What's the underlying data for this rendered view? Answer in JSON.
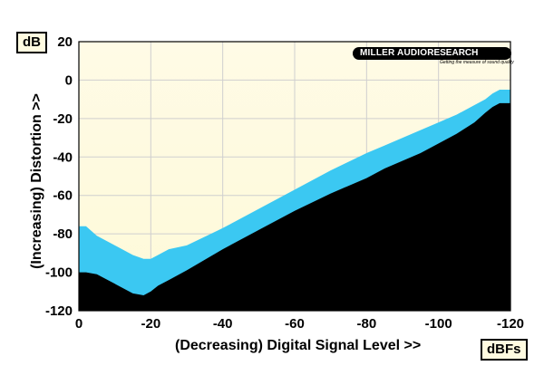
{
  "chart_data": {
    "type": "area",
    "title": "",
    "xlabel": "(Decreasing) Digital Signal Level >>",
    "ylabel": "(Increasing) Distortion >>",
    "x_unit": "dBFs",
    "y_unit": "dB",
    "xlim": [
      0,
      -120
    ],
    "ylim": [
      -120,
      20
    ],
    "x_ticks": [
      "0",
      "-20",
      "-40",
      "-60",
      "-80",
      "-100",
      "-120"
    ],
    "y_ticks": [
      "20",
      "0",
      "-20",
      "-40",
      "-60",
      "-80",
      "-100",
      "-120"
    ],
    "grid": true,
    "series": [
      {
        "x": [
          0,
          -2,
          -5,
          -10,
          -15,
          -18,
          -20,
          -22,
          -25,
          -30,
          -40,
          -50,
          -60,
          -70,
          -80,
          -85,
          -90,
          -95,
          -100,
          -105,
          -110,
          -113,
          -115,
          -117,
          -120
        ],
        "values": [
          -76,
          -76,
          -81,
          -86,
          -91,
          -93,
          -93,
          -91,
          -88,
          -86,
          -77,
          -67,
          -57,
          -47,
          -38,
          -34,
          -30,
          -26,
          -22,
          -18,
          -13,
          -10,
          -7,
          -5,
          -5
        ],
        "color": "#3bc8f2"
      },
      {
        "x": [
          0,
          -2,
          -5,
          -10,
          -15,
          -18,
          -20,
          -22,
          -25,
          -30,
          -40,
          -50,
          -60,
          -70,
          -80,
          -85,
          -90,
          -95,
          -100,
          -105,
          -110,
          -113,
          -115,
          -117,
          -120
        ],
        "values": [
          -100,
          -100,
          -101,
          -106,
          -111,
          -112,
          -110,
          -107,
          -104,
          -99,
          -88,
          -78,
          -68,
          -59,
          -51,
          -46,
          -42,
          -38,
          -33,
          -28,
          -22,
          -17,
          -14,
          -12,
          -12
        ],
        "color": "#000000"
      }
    ]
  },
  "colors": {
    "plot_bg_top": "#fffbe6",
    "plot_bg_bottom": "#fdf9d8",
    "band": "#3bc8f2",
    "floor": "#000000",
    "grid": "#cfcfcf"
  },
  "logo": {
    "left": "MILLER AUDIO",
    "right": "RESEARCH",
    "tagline": "Getting the measure of sound quality"
  }
}
